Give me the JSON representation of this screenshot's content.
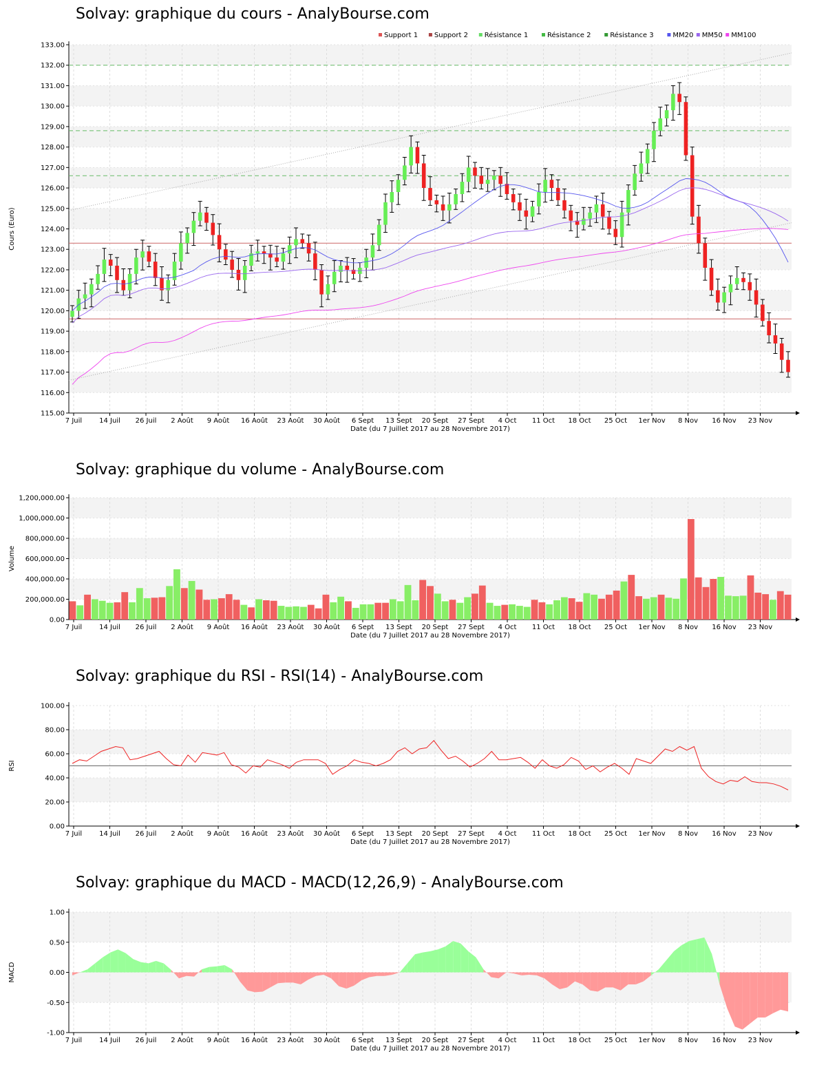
{
  "dates": [
    "7 Juil",
    "14 Juil",
    "26 Juil",
    "2 Août",
    "9 Août",
    "16 Août",
    "23 Août",
    "30 Août",
    "6 Sept",
    "13 Sept",
    "20 Sept",
    "27 Sept",
    "4 Oct",
    "11 Oct",
    "18 Oct",
    "25 Oct",
    "1er Nov",
    "8 Nov",
    "16 Nov",
    "23 Nov"
  ],
  "date_range_label": "Date (du 7 Juillet 2017 au 28 Novembre 2017)",
  "colors": {
    "up": "#66ee55",
    "down": "#ee2222",
    "vol_up": "#88ee66",
    "vol_down": "#f06060",
    "mm20": "#5555ee",
    "mm50": "#9966ee",
    "mm100": "#ee44ee",
    "support": "#cc6666",
    "resistance": "#66bb66",
    "rsi": "#ee2222",
    "macd_pos": "#99ff99",
    "macd_neg": "#ff9999"
  },
  "chart_data": [
    {
      "id": "price",
      "type": "candlestick",
      "title": "Solvay: graphique du cours - AnalyBourse.com",
      "ylabel": "Cours (Euro)",
      "ylim": [
        115,
        133
      ],
      "yticks": [
        "115.00",
        "116.00",
        "117.00",
        "118.00",
        "119.00",
        "120.00",
        "121.00",
        "122.00",
        "123.00",
        "124.00",
        "125.00",
        "126.00",
        "127.00",
        "128.00",
        "129.00",
        "130.00",
        "131.00",
        "132.00",
        "133.00"
      ],
      "legend": [
        {
          "label": "Support 1",
          "color": "#dd5555"
        },
        {
          "label": "Support 2",
          "color": "#aa4444"
        },
        {
          "label": "Résistance 1",
          "color": "#66dd66"
        },
        {
          "label": "Résistance 2",
          "color": "#44bb44"
        },
        {
          "label": "Résistance 3",
          "color": "#339933"
        },
        {
          "label": "MM20",
          "color": "#5555ee"
        },
        {
          "label": "MM50",
          "color": "#9966ee"
        },
        {
          "label": "MM100",
          "color": "#ee44ee"
        }
      ],
      "support_lines": [
        119.6,
        123.3
      ],
      "resistance_lines": [
        126.6,
        128.8,
        132.0
      ],
      "close": [
        120.0,
        120.6,
        120.8,
        121.3,
        121.8,
        122.5,
        122.2,
        121.5,
        121.0,
        121.8,
        122.6,
        122.9,
        122.4,
        121.6,
        121.0,
        121.5,
        122.4,
        123.3,
        123.8,
        124.4,
        124.8,
        124.3,
        123.7,
        123.0,
        122.5,
        122.0,
        121.5,
        122.2,
        122.8,
        122.9,
        122.8,
        122.6,
        122.4,
        122.8,
        123.2,
        123.5,
        123.3,
        122.8,
        122.0,
        120.8,
        121.3,
        121.9,
        122.2,
        122.0,
        121.8,
        122.1,
        122.6,
        123.2,
        124.2,
        125.3,
        125.8,
        126.4,
        127.1,
        128.0,
        127.2,
        126.0,
        125.4,
        125.2,
        124.9,
        125.2,
        125.7,
        126.3,
        127.0,
        126.6,
        126.2,
        126.4,
        126.6,
        126.2,
        125.7,
        125.3,
        124.9,
        124.6,
        125.1,
        125.8,
        126.4,
        126.0,
        125.4,
        124.9,
        124.4,
        124.2,
        124.5,
        124.8,
        125.2,
        124.6,
        124.0,
        123.6,
        124.8,
        125.9,
        126.7,
        127.2,
        127.9,
        128.8,
        129.4,
        129.8,
        130.6,
        130.2,
        127.6,
        124.6,
        123.3,
        122.1,
        121.0,
        120.4,
        120.9,
        121.3,
        121.6,
        121.4,
        121.0,
        120.3,
        119.5,
        118.8,
        118.4,
        117.6,
        117.0
      ]
    },
    {
      "id": "volume",
      "type": "bar",
      "title": "Solvay: graphique du volume - AnalyBourse.com",
      "ylabel": "Volume",
      "ylim": [
        0,
        1200000
      ],
      "yticks": [
        "0.00",
        "200,000.00",
        "400,000.00",
        "600,000.00",
        "800,000.00",
        "1,000,000.00",
        "1,200,000.00"
      ],
      "values": [
        180000,
        140000,
        245000,
        200000,
        185000,
        165000,
        170000,
        270000,
        170000,
        310000,
        210000,
        215000,
        220000,
        330000,
        495000,
        310000,
        380000,
        295000,
        195000,
        200000,
        210000,
        250000,
        195000,
        145000,
        120000,
        200000,
        190000,
        185000,
        135000,
        125000,
        130000,
        125000,
        145000,
        110000,
        245000,
        170000,
        225000,
        180000,
        115000,
        150000,
        150000,
        165000,
        165000,
        200000,
        180000,
        340000,
        190000,
        390000,
        330000,
        255000,
        180000,
        195000,
        165000,
        220000,
        255000,
        335000,
        165000,
        135000,
        145000,
        150000,
        135000,
        125000,
        195000,
        170000,
        150000,
        190000,
        220000,
        210000,
        175000,
        260000,
        245000,
        205000,
        245000,
        285000,
        375000,
        440000,
        230000,
        205000,
        220000,
        245000,
        215000,
        205000,
        405000,
        990000,
        415000,
        320000,
        400000,
        420000,
        235000,
        230000,
        235000,
        435000,
        265000,
        250000,
        195000,
        280000,
        245000
      ],
      "up": [
        0,
        1,
        0,
        1,
        1,
        1,
        0,
        0,
        1,
        1,
        1,
        0,
        0,
        1,
        1,
        0,
        1,
        0,
        0,
        1,
        0,
        0,
        0,
        1,
        0,
        1,
        0,
        0,
        1,
        1,
        1,
        1,
        0,
        0,
        0,
        1,
        1,
        0,
        1,
        1,
        1,
        0,
        0,
        1,
        1,
        1,
        1,
        0,
        0,
        1,
        1,
        0,
        1,
        1,
        0,
        0,
        1,
        1,
        0,
        1,
        1,
        1,
        0,
        0,
        1,
        1,
        1,
        0,
        0,
        1,
        1,
        0,
        0,
        0,
        1,
        0,
        0,
        1,
        1,
        0,
        1,
        1,
        1,
        0,
        0,
        0,
        0,
        1,
        1,
        1,
        1,
        0,
        0,
        0,
        1,
        0,
        0
      ]
    },
    {
      "id": "rsi",
      "type": "line",
      "title": "Solvay: graphique du RSI - RSI(14) - AnalyBourse.com",
      "ylabel": "RSI",
      "ylim": [
        0,
        100
      ],
      "yticks": [
        "0.00",
        "20.00",
        "40.00",
        "60.00",
        "80.00",
        "100.00"
      ],
      "reference": 50,
      "values": [
        52,
        55,
        54,
        58,
        62,
        64,
        66,
        65,
        55,
        56,
        58,
        60,
        62,
        56,
        51,
        50,
        59,
        53,
        61,
        60,
        59,
        61,
        51,
        49,
        44,
        50,
        49,
        55,
        53,
        51,
        48,
        53,
        55,
        55,
        55,
        52,
        43,
        47,
        50,
        55,
        53,
        52,
        50,
        52,
        55,
        62,
        65,
        60,
        64,
        65,
        71,
        63,
        56,
        58,
        54,
        49,
        52,
        56,
        62,
        55,
        55,
        56,
        57,
        53,
        48,
        55,
        50,
        48,
        51,
        57,
        54,
        47,
        50,
        45,
        49,
        52,
        48,
        43,
        56,
        54,
        52,
        58,
        64,
        62,
        66,
        63,
        66,
        48,
        41,
        37,
        35,
        38,
        37,
        41,
        37,
        36,
        36,
        35,
        33,
        30
      ]
    },
    {
      "id": "macd",
      "type": "area",
      "title": "Solvay: graphique du MACD - MACD(12,26,9) - AnalyBourse.com",
      "ylabel": "MACD",
      "ylim": [
        -1,
        1
      ],
      "yticks": [
        "-1.00",
        "-0.50",
        "0.00",
        "0.50",
        "1.00"
      ],
      "values": [
        -0.05,
        0.0,
        0.05,
        0.15,
        0.25,
        0.33,
        0.38,
        0.32,
        0.22,
        0.17,
        0.15,
        0.19,
        0.15,
        0.04,
        -0.1,
        -0.06,
        -0.07,
        0.05,
        0.09,
        0.1,
        0.12,
        0.05,
        -0.15,
        -0.3,
        -0.33,
        -0.32,
        -0.25,
        -0.18,
        -0.17,
        -0.17,
        -0.2,
        -0.12,
        -0.06,
        -0.04,
        -0.1,
        -0.23,
        -0.27,
        -0.22,
        -0.13,
        -0.08,
        -0.06,
        -0.06,
        -0.04,
        0.0,
        0.15,
        0.3,
        0.33,
        0.35,
        0.38,
        0.43,
        0.52,
        0.48,
        0.35,
        0.25,
        0.05,
        -0.08,
        -0.1,
        0.0,
        -0.02,
        -0.05,
        -0.04,
        -0.05,
        -0.1,
        -0.2,
        -0.28,
        -0.25,
        -0.15,
        -0.2,
        -0.3,
        -0.32,
        -0.25,
        -0.25,
        -0.3,
        -0.2,
        -0.2,
        -0.15,
        -0.05,
        0.05,
        0.2,
        0.35,
        0.45,
        0.52,
        0.55,
        0.58,
        0.3,
        -0.2,
        -0.6,
        -0.9,
        -0.95,
        -0.85,
        -0.75,
        -0.75,
        -0.68,
        -0.62,
        -0.65
      ]
    }
  ]
}
